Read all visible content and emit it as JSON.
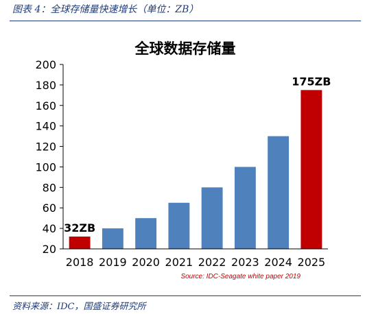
{
  "caption": "图表 4：全球存储量快速增长（单位：ZB）",
  "footer_source": "资料来源：IDC，国盛证券研究所",
  "chart_data": {
    "type": "bar",
    "title": "全球数据存储量",
    "categories": [
      "2018",
      "2019",
      "2020",
      "2021",
      "2022",
      "2023",
      "2024",
      "2025"
    ],
    "values": [
      32,
      40,
      50,
      65,
      80,
      100,
      130,
      175
    ],
    "highlight_indices": [
      0,
      7
    ],
    "data_labels": [
      {
        "index": 0,
        "text": "32ZB"
      },
      {
        "index": 7,
        "text": "175ZB"
      }
    ],
    "ylim": [
      20,
      200
    ],
    "yticks": [
      20,
      40,
      60,
      80,
      100,
      120,
      140,
      160,
      180,
      200
    ],
    "xlabel": "",
    "ylabel": "",
    "grid": false,
    "source_text": "Source: IDC-Seagate white paper 2019",
    "colors": {
      "bar": "#4f81bd",
      "highlight": "#c00000",
      "axis": "#000000",
      "title": "#000000",
      "source": "#c00000",
      "caption": "#1f3b7a"
    }
  }
}
